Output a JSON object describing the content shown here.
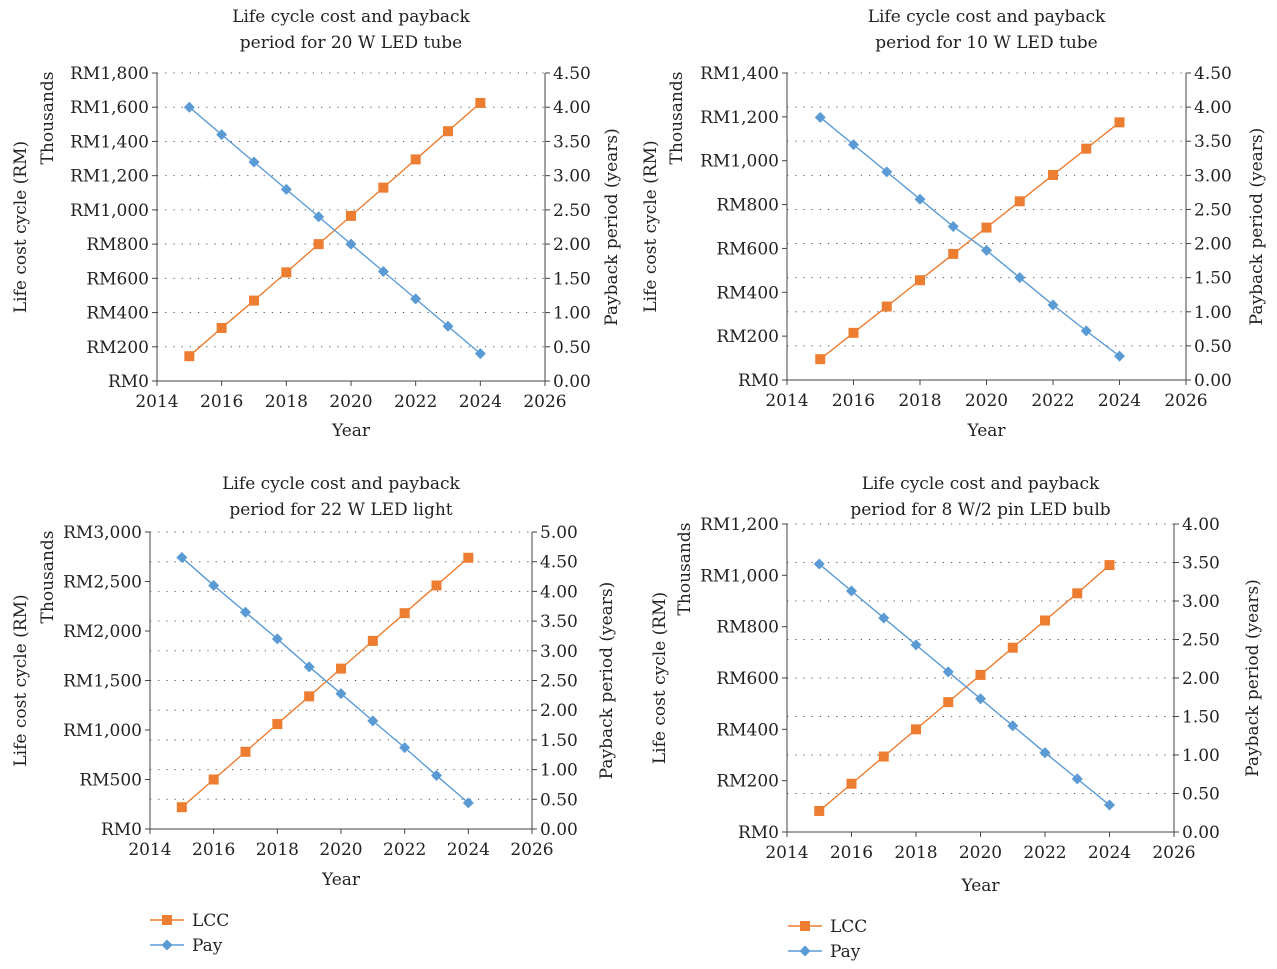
{
  "legend": [
    {
      "name": "LCC",
      "color": "#ED7D31",
      "marker": "square"
    },
    {
      "name": "Pay",
      "color": "#5B9BD5",
      "marker": "diamond"
    }
  ],
  "chart_data": [
    {
      "type": "line",
      "title": [
        "Life cycle cost and payback",
        "period for 20 W LED tube"
      ],
      "xlabel": "Year",
      "ylabel_left": "Life cost cycle (RM)",
      "ylabel_left_unit": "Thousands",
      "ylabel_right": "Payback period (years)",
      "xlim": [
        2014,
        2026
      ],
      "xticks": [
        "2014",
        "2016",
        "2018",
        "2020",
        "2022",
        "2024",
        "2026"
      ],
      "ylim_left": [
        0,
        1800
      ],
      "yticks_left": [
        "RM0",
        "RM200",
        "RM400",
        "RM600",
        "RM800",
        "RM1,000",
        "RM1,200",
        "RM1,400",
        "RM1,600",
        "RM1,800"
      ],
      "ylim_right": [
        0,
        4.5
      ],
      "yticks_right": [
        "0.00",
        "0.50",
        "1.00",
        "1.50",
        "2.00",
        "2.50",
        "3.00",
        "3.50",
        "4.00",
        "4.50"
      ],
      "grid": "horizontal dotted",
      "x": [
        2015,
        2016,
        2017,
        2018,
        2019,
        2020,
        2021,
        2022,
        2023,
        2024
      ],
      "series": [
        {
          "name": "LCC",
          "axis": "left",
          "values": [
            145,
            310,
            470,
            635,
            800,
            965,
            1130,
            1295,
            1460,
            1625
          ]
        },
        {
          "name": "Pay",
          "axis": "right",
          "values": [
            4.0,
            3.6,
            3.2,
            2.8,
            2.4,
            2.0,
            1.6,
            1.2,
            0.8,
            0.4
          ]
        }
      ]
    },
    {
      "type": "line",
      "title": [
        "Life cycle cost and payback",
        "period for 10 W LED tube"
      ],
      "xlabel": "Year",
      "ylabel_left": "Life cost cycle (RM)",
      "ylabel_left_unit": "Thousands",
      "ylabel_right": "Payback period (years)",
      "xlim": [
        2014,
        2026
      ],
      "xticks": [
        "2014",
        "2016",
        "2018",
        "2020",
        "2022",
        "2024",
        "2026"
      ],
      "ylim_left": [
        0,
        1400
      ],
      "yticks_left": [
        "RM0",
        "RM200",
        "RM400",
        "RM600",
        "RM800",
        "RM1,000",
        "RM1,200",
        "RM1,400"
      ],
      "ylim_right": [
        0,
        4.5
      ],
      "yticks_right": [
        "0.00",
        "0.50",
        "1.00",
        "1.50",
        "2.00",
        "2.50",
        "3.00",
        "3.50",
        "4.00",
        "4.50"
      ],
      "grid": "horizontal dotted",
      "x": [
        2015,
        2016,
        2017,
        2018,
        2019,
        2020,
        2021,
        2022,
        2023,
        2024
      ],
      "series": [
        {
          "name": "LCC",
          "axis": "left",
          "values": [
            95,
            215,
            335,
            455,
            575,
            695,
            815,
            935,
            1055,
            1175
          ]
        },
        {
          "name": "Pay",
          "axis": "right",
          "values": [
            3.85,
            3.45,
            3.05,
            2.65,
            2.25,
            1.9,
            1.5,
            1.1,
            0.72,
            0.35
          ]
        }
      ]
    },
    {
      "type": "line",
      "title": [
        "Life cycle cost and payback",
        "period for 22 W LED light"
      ],
      "xlabel": "Year",
      "ylabel_left": "Life cost cycle (RM)",
      "ylabel_left_unit": "Thousands",
      "ylabel_right": "Payback period (years)",
      "xlim": [
        2014,
        2026
      ],
      "xticks": [
        "2014",
        "2016",
        "2018",
        "2020",
        "2022",
        "2024",
        "2026"
      ],
      "ylim_left": [
        0,
        3000
      ],
      "yticks_left": [
        "RM0",
        "RM500",
        "RM1,000",
        "RM1,500",
        "RM2,000",
        "RM2,500",
        "RM3,000"
      ],
      "ylim_right": [
        0,
        5.0
      ],
      "yticks_right": [
        "0.00",
        "0.50",
        "1.00",
        "1.50",
        "2.00",
        "2.50",
        "3.00",
        "3.50",
        "4.00",
        "4.50",
        "5.00"
      ],
      "grid": "horizontal dotted",
      "x": [
        2015,
        2016,
        2017,
        2018,
        2019,
        2020,
        2021,
        2022,
        2023,
        2024
      ],
      "series": [
        {
          "name": "LCC",
          "axis": "left",
          "values": [
            220,
            500,
            780,
            1060,
            1340,
            1620,
            1900,
            2180,
            2460,
            2740
          ]
        },
        {
          "name": "Pay",
          "axis": "right",
          "values": [
            4.57,
            4.1,
            3.65,
            3.2,
            2.73,
            2.28,
            1.82,
            1.37,
            0.9,
            0.44
          ]
        }
      ]
    },
    {
      "type": "line",
      "title": [
        "Life cycle cost and payback",
        "period for 8 W/2 pin LED bulb"
      ],
      "xlabel": "Year",
      "ylabel_left": "Life cost cycle (RM)",
      "ylabel_left_unit": "Thousands",
      "ylabel_right": "Payback period (years)",
      "xlim": [
        2014,
        2026
      ],
      "xticks": [
        "2014",
        "2016",
        "2018",
        "2020",
        "2022",
        "2024",
        "2026"
      ],
      "ylim_left": [
        0,
        1200
      ],
      "yticks_left": [
        "RM0",
        "RM200",
        "RM400",
        "RM600",
        "RM800",
        "RM1,000",
        "RM1,200"
      ],
      "ylim_right": [
        0,
        4.0
      ],
      "yticks_right": [
        "0.00",
        "0.50",
        "1.00",
        "1.50",
        "2.00",
        "2.50",
        "3.00",
        "3.50",
        "4.00"
      ],
      "grid": "horizontal dotted",
      "x": [
        2015,
        2016,
        2017,
        2018,
        2019,
        2020,
        2021,
        2022,
        2023,
        2024
      ],
      "series": [
        {
          "name": "LCC",
          "axis": "left",
          "values": [
            82,
            188,
            294,
            400,
            506,
            612,
            718,
            824,
            930,
            1040
          ]
        },
        {
          "name": "Pay",
          "axis": "right",
          "values": [
            3.48,
            3.13,
            2.78,
            2.43,
            2.08,
            1.73,
            1.38,
            1.03,
            0.69,
            0.35
          ]
        }
      ]
    }
  ]
}
